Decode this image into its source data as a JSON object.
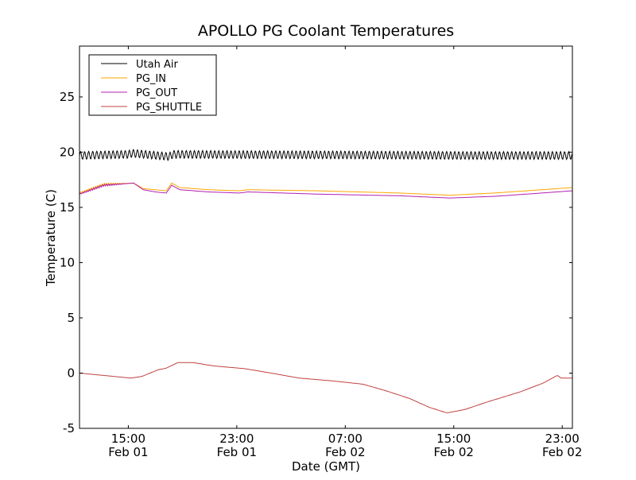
{
  "chart_data": {
    "type": "line",
    "title": "APOLLO PG Coolant Temperatures",
    "xlabel": "Date (GMT)",
    "ylabel": "Temperature (C)",
    "xlim_hours_from_feb01_0000": [
      11.4,
      47.75
    ],
    "ylim": [
      -5,
      29.6
    ],
    "yticks": [
      -5,
      0,
      5,
      10,
      15,
      20,
      25
    ],
    "xticks": [
      {
        "hour": 15,
        "time": "15:00",
        "date": "Feb 01"
      },
      {
        "hour": 23,
        "time": "23:00",
        "date": "Feb 01"
      },
      {
        "hour": 31,
        "time": "07:00",
        "date": "Feb 02"
      },
      {
        "hour": 39,
        "time": "15:00",
        "date": "Feb 02"
      },
      {
        "hour": 47,
        "time": "23:00",
        "date": "Feb 02"
      }
    ],
    "grid": false,
    "legend_position": "top-left",
    "series": [
      {
        "name": "Utah Air",
        "color": "#000000",
        "oscillation_amplitude": 0.35,
        "oscillation_period_hours": 0.3,
        "x": [
          11.4,
          15.0,
          15.3,
          18.0,
          18.3,
          30.0,
          40.0,
          47.75
        ],
        "y": [
          19.7,
          19.8,
          19.9,
          19.6,
          19.8,
          19.75,
          19.7,
          19.7
        ]
      },
      {
        "name": "PG_IN",
        "color": "#ffa500",
        "x": [
          11.4,
          13.2,
          15.4,
          16.1,
          17.0,
          17.8,
          18.2,
          18.8,
          20.9,
          23.2,
          23.8,
          29.0,
          35.0,
          38.7,
          42.0,
          45.5,
          47.75
        ],
        "y": [
          16.3,
          17.1,
          17.2,
          16.7,
          16.6,
          16.5,
          17.2,
          16.8,
          16.6,
          16.5,
          16.6,
          16.5,
          16.3,
          16.1,
          16.3,
          16.6,
          16.8
        ]
      },
      {
        "name": "PG_OUT",
        "color": "#b020b0",
        "x": [
          11.4,
          13.2,
          15.4,
          16.1,
          17.0,
          17.8,
          18.2,
          18.8,
          20.9,
          23.2,
          23.8,
          29.0,
          35.0,
          38.7,
          42.0,
          45.5,
          47.75
        ],
        "y": [
          16.2,
          17.0,
          17.2,
          16.6,
          16.4,
          16.3,
          17.0,
          16.6,
          16.4,
          16.3,
          16.4,
          16.2,
          16.05,
          15.85,
          16.0,
          16.3,
          16.5
        ]
      },
      {
        "name": "PG_SHUTTLE",
        "color": "#c04040",
        "x": [
          11.4,
          15.2,
          16.0,
          17.2,
          17.8,
          18.65,
          19.8,
          21.3,
          23.6,
          25.3,
          27.6,
          30.0,
          32.3,
          34.0,
          35.75,
          37.2,
          38.5,
          39.8,
          41.5,
          43.9,
          45.6,
          46.65,
          46.9,
          47.75
        ],
        "y": [
          0.0,
          -0.45,
          -0.3,
          0.3,
          0.45,
          0.95,
          0.95,
          0.65,
          0.4,
          0.05,
          -0.45,
          -0.7,
          -1.0,
          -1.6,
          -2.3,
          -3.1,
          -3.6,
          -3.3,
          -2.6,
          -1.7,
          -0.9,
          -0.2,
          -0.45,
          -0.45
        ]
      }
    ]
  }
}
